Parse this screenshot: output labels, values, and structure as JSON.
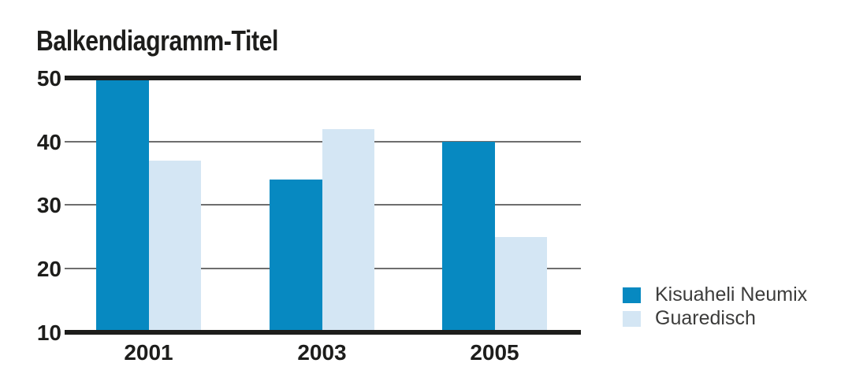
{
  "title": "Balkendiagramm-Titel",
  "colors": {
    "background": "#ffffff",
    "axis_line": "#1d1d1b",
    "gridline": "#6e6e6e",
    "title_text": "#1d1d1b",
    "tick_text": "#1d1d1b",
    "legend_text": "#3c3c3b",
    "series1": "#0789c1",
    "series2": "#d4e6f4"
  },
  "chart_data": {
    "type": "bar",
    "title": "Balkendiagramm-Titel",
    "categories": [
      "2001",
      "2003",
      "2005"
    ],
    "series": [
      {
        "name": "Kisuaheli Neumix",
        "color": "#0789c1",
        "values": [
          50,
          34,
          40
        ]
      },
      {
        "name": "Guaredisch",
        "color": "#d4e6f4",
        "values": [
          37,
          42,
          25
        ]
      }
    ],
    "xlabel": "",
    "ylabel": "",
    "ylim": [
      10,
      50
    ],
    "yticks": [
      10,
      20,
      30,
      40,
      50
    ],
    "grid": "horizontal",
    "grid_emphasis": "thick black rules at y=10 and y=50, thin gray rules at 20/30/40",
    "legend_position": "bottom-right"
  }
}
